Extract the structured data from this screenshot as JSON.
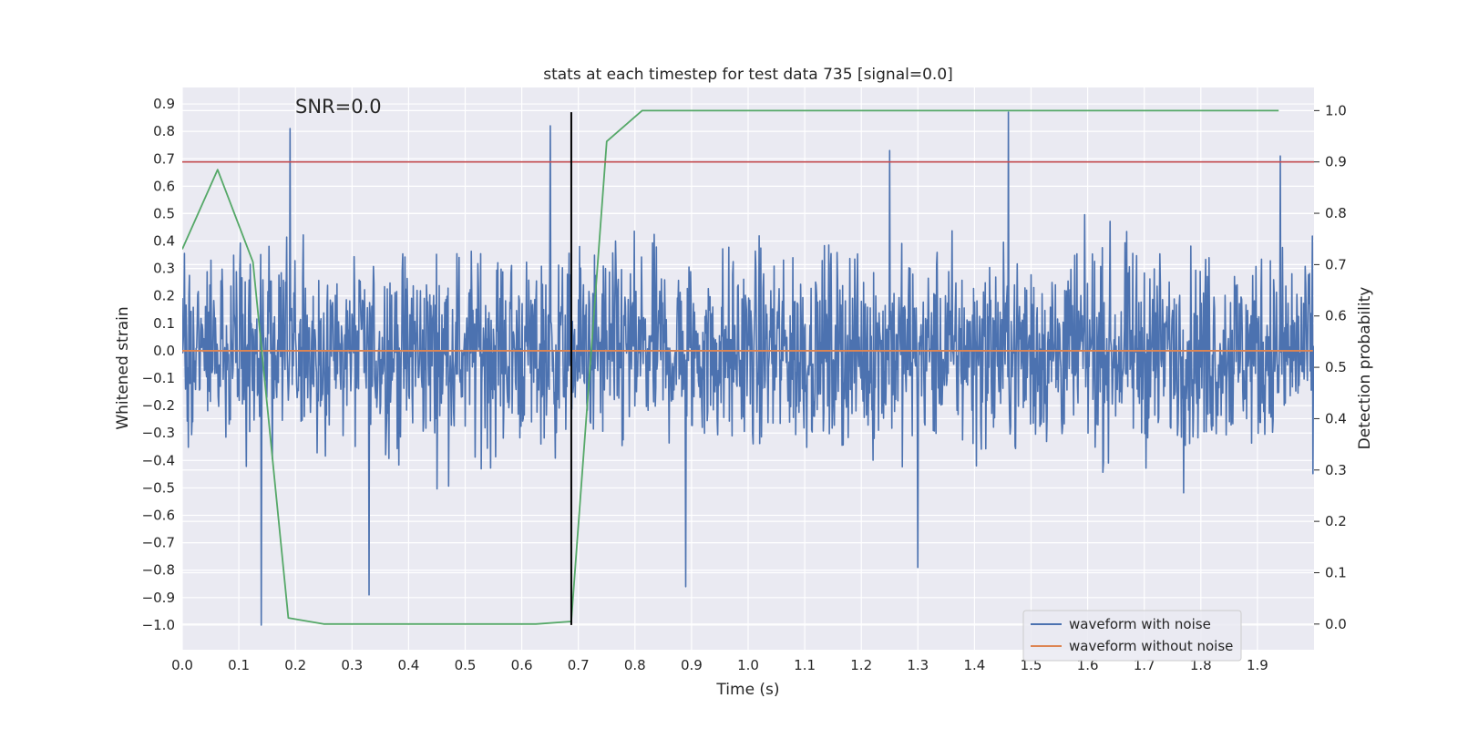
{
  "chart_data": {
    "type": "line",
    "title": "stats at each timestep for test data 735 [signal=0.0]",
    "xlabel": "Time (s)",
    "ylabel": "Whitened strain",
    "y2label": "Detection probability",
    "xlim": [
      0.0,
      2.0
    ],
    "ylim": [
      -1.09,
      0.96
    ],
    "y2lim": [
      -0.05,
      1.045
    ],
    "xticks": [
      "0.0",
      "0.1",
      "0.2",
      "0.3",
      "0.4",
      "0.5",
      "0.6",
      "0.7",
      "0.8",
      "0.9",
      "1.0",
      "1.1",
      "1.2",
      "1.3",
      "1.4",
      "1.5",
      "1.6",
      "1.7",
      "1.8",
      "1.9"
    ],
    "yticks": [
      "0.9",
      "0.8",
      "0.7",
      "0.6",
      "0.5",
      "0.4",
      "0.3",
      "0.2",
      "0.1",
      "0.0",
      "-0.1",
      "-0.2",
      "-0.3",
      "-0.4",
      "-0.5",
      "-0.6",
      "-0.7",
      "-0.8",
      "-0.9",
      "-1.0"
    ],
    "y2ticks": [
      "1.0",
      "0.9",
      "0.8",
      "0.7",
      "0.6",
      "0.5",
      "0.4",
      "0.3",
      "0.2",
      "0.1",
      "0.0"
    ],
    "annotation": "SNR=0.0",
    "colors": {
      "noise": "#4c72b0",
      "clean": "#dd8452",
      "probability": "#55a868",
      "threshold": "#c44e52",
      "marker": "#000000",
      "grid": "#ffffff",
      "background": "#eaeaf2"
    },
    "series": [
      {
        "name": "waveform with noise",
        "axis": "left",
        "style": "dense noise trace",
        "n_points": 2048,
        "approx_range": [
          -1.0,
          0.87
        ],
        "highlight_peaks": [
          {
            "x": 0.19,
            "y": 0.81
          },
          {
            "x": 0.14,
            "y": -1.0
          },
          {
            "x": 0.33,
            "y": -0.89
          },
          {
            "x": 0.65,
            "y": 0.82
          },
          {
            "x": 0.89,
            "y": -0.86
          },
          {
            "x": 1.25,
            "y": 0.73
          },
          {
            "x": 1.3,
            "y": -0.79
          },
          {
            "x": 1.46,
            "y": 0.87
          },
          {
            "x": 1.94,
            "y": 0.71
          }
        ]
      },
      {
        "name": "waveform without noise",
        "axis": "left",
        "x": [
          0.0,
          1.998
        ],
        "y": [
          0.0,
          0.0
        ]
      },
      {
        "name": "detection probability",
        "axis": "right",
        "x": [
          0.0,
          0.0625,
          0.125,
          0.1875,
          0.25,
          0.3125,
          0.375,
          0.4375,
          0.5,
          0.5625,
          0.625,
          0.6875,
          0.75,
          0.8125,
          0.875,
          0.9375,
          1.0,
          1.0625,
          1.125,
          1.1875,
          1.25,
          1.3125,
          1.375,
          1.4375,
          1.5,
          1.5625,
          1.625,
          1.6875,
          1.75,
          1.8125,
          1.875,
          1.9375
        ],
        "y": [
          0.73,
          0.885,
          0.705,
          0.012,
          0.0,
          0.0,
          0.0,
          0.0,
          0.0,
          0.0,
          0.0,
          0.005,
          0.94,
          1.0,
          1.0,
          1.0,
          1.0,
          1.0,
          1.0,
          1.0,
          1.0,
          1.0,
          1.0,
          1.0,
          1.0,
          1.0,
          1.0,
          1.0,
          1.0,
          1.0,
          1.0,
          1.0
        ]
      }
    ],
    "threshold": {
      "axis": "right",
      "y": 0.9
    },
    "marker_line": {
      "x": 0.6875,
      "y_from": -1.0,
      "y_to": 0.87
    },
    "legend": {
      "position": "lower-right",
      "entries": [
        "waveform with noise",
        "waveform without noise"
      ]
    }
  }
}
